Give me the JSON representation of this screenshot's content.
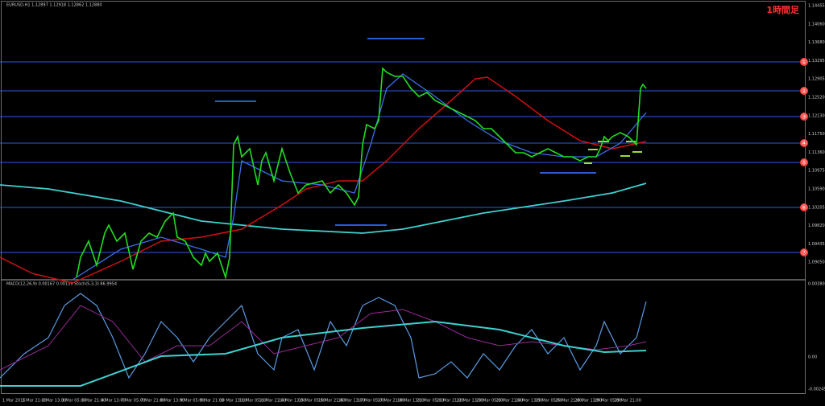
{
  "header": {
    "symbol_line": "EURUSD,H1  1.12897 1.12918 1.12862 1.12880",
    "timeframe_note": "1時間足"
  },
  "price_axis": {
    "labels": [
      "1.14455",
      "1.14060",
      "1.13680",
      "1.13295",
      "1.12905",
      "1.12520",
      "1.12130",
      "1.11750",
      "1.11360",
      "1.10975",
      "1.10590",
      "1.10205",
      "1.09820",
      "1.09435",
      "1.09050"
    ]
  },
  "levels": {
    "markers": [
      "①",
      "②",
      "③",
      "④",
      "⑤",
      "⑥",
      "⑦"
    ]
  },
  "indicator": {
    "header": "MACD(12,26,9) 0.00167 0.00139  Stoch(5,3,3) 86.9954",
    "axis_labels": [
      "0.003800",
      "0.00",
      "-0.002452"
    ]
  },
  "time_axis": {
    "labels": [
      "1 Mar 2016",
      "1 Mar 21:00",
      "2 Mar 13:00",
      "3 Mar 05:00",
      "3 Mar 21:00",
      "4 Mar 13:00",
      "7 Mar 05:00",
      "7 Mar 21:00",
      "8 Mar 13:00",
      "9 Mar 05:00",
      "9 Mar 21:00",
      "10 Mar 13:00",
      "11 Mar 05:00",
      "11 Mar 21:00",
      "14 Mar 13:00",
      "15 Mar 05:00",
      "15 Mar 21:00",
      "16 Mar 13:00",
      "17 Mar 05:00",
      "17 Mar 21:00",
      "18 Mar 13:00",
      "21 Mar 05:00",
      "21 Mar 21:00",
      "22 Mar 13:00",
      "23 Mar 05:00",
      "23 Mar 21:00",
      "24 Mar 13:00",
      "25 Mar 05:00",
      "25 Mar 21:00",
      "28 Mar 13:00",
      "29 Mar 05:00",
      "29 Mar 21:00"
    ]
  }
}
